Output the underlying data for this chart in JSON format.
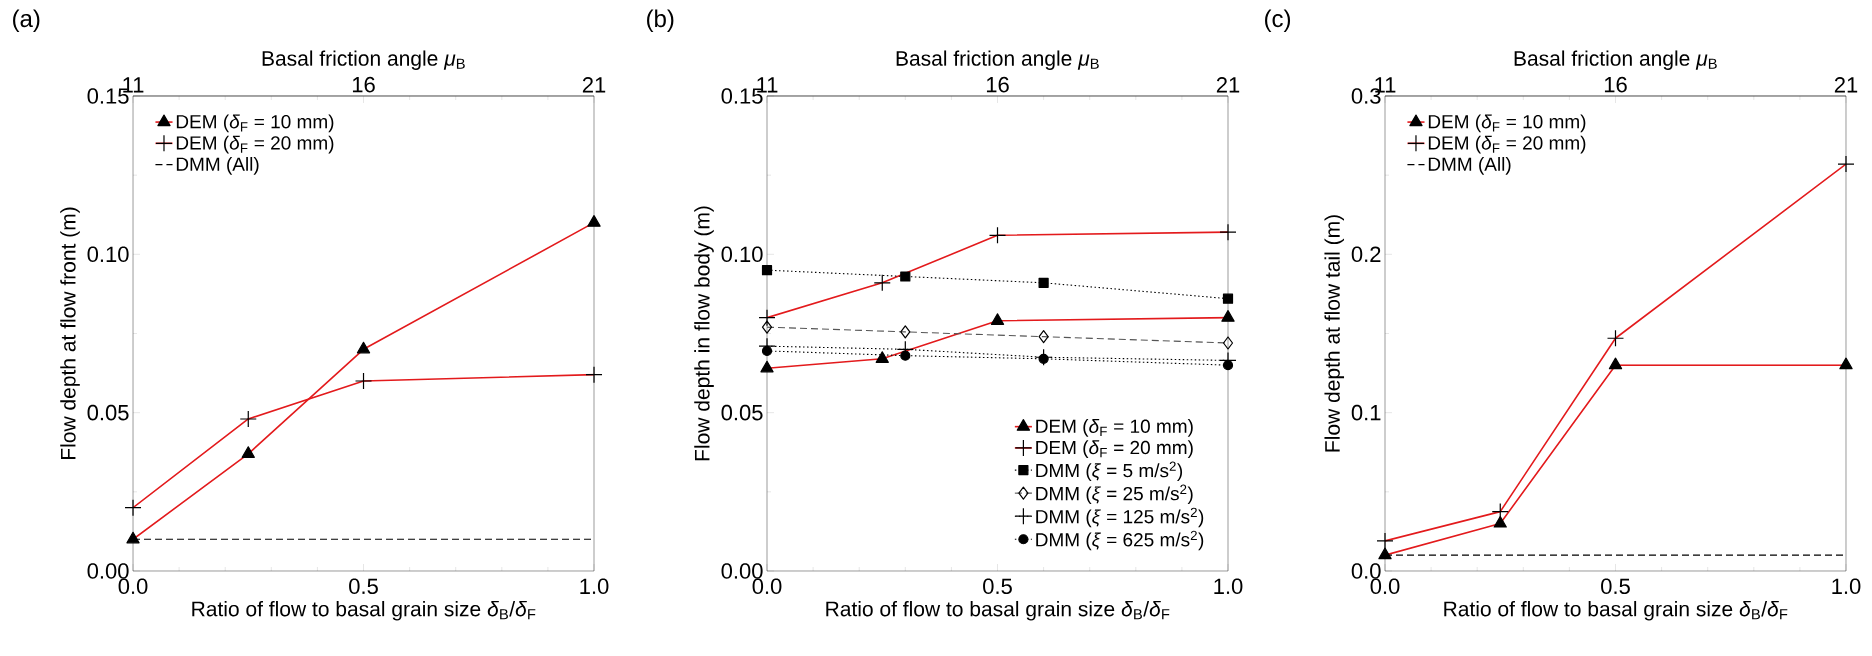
{
  "chart_data": [
    {
      "type": "line",
      "title": "(a)",
      "xlabel": "Ratio of flow to basal grain size *δ*$_{B}$/*δ*$_{F}$",
      "ylabel": "Flow depth at flow front (m)",
      "x2label": "Basal friction angle *μ*$_{B}$",
      "x": [
        0,
        0.25,
        0.5,
        1.0
      ],
      "xlim": [
        0,
        1
      ],
      "xticks": [
        {
          "value": 0,
          "label": "0.0"
        },
        {
          "value": 0.5,
          "label": "0.5"
        },
        {
          "value": 1,
          "label": "1.0"
        }
      ],
      "x2lim": [
        11,
        21
      ],
      "x2ticks": [
        11,
        16,
        21
      ],
      "ylim": [
        0,
        0.15
      ],
      "yticks": [
        {
          "value": 0,
          "label": "0.00"
        },
        {
          "value": 0.05,
          "label": "0.05"
        },
        {
          "value": 0.1,
          "label": "0.10"
        },
        {
          "value": 0.15,
          "label": "0.15"
        }
      ],
      "legend": "top left",
      "series": [
        {
          "name": "DEM (*δ*$_{F}$ = 10 mm)",
          "color": "#e31a1c",
          "values": [
            0.01,
            0.037,
            0.07,
            0.11
          ],
          "marker": "triangle",
          "line_style": "solid"
        },
        {
          "name": "DEM (*δ*$_{F}$ = 20 mm)",
          "color": "#e31a1c",
          "values": [
            0.02,
            0.048,
            0.06,
            0.062
          ],
          "marker": "cross",
          "line_style": "solid"
        },
        {
          "name": "DMM (All)",
          "color": "#000000",
          "x": [
            0,
            1
          ],
          "values": [
            0.01,
            0.01
          ],
          "line_style": "dashed"
        }
      ]
    },
    {
      "type": "line",
      "title": "(b)",
      "xlabel": "Ratio of flow to basal grain size *δ*$_{B}$/*δ*$_{F}$",
      "ylabel": "Flow depth in flow body (m)",
      "x2label": "Basal friction angle *μ*$_{B}$",
      "x": [
        0,
        0.25,
        0.5,
        1.0
      ],
      "xlim": [
        0,
        1
      ],
      "xticks": [
        {
          "value": 0,
          "label": "0.0"
        },
        {
          "value": 0.5,
          "label": "0.5"
        },
        {
          "value": 1,
          "label": "1.0"
        }
      ],
      "x2lim": [
        11,
        21
      ],
      "x2ticks": [
        11,
        16,
        21
      ],
      "ylim": [
        0,
        0.15
      ],
      "yticks": [
        {
          "value": 0,
          "label": "0.00"
        },
        {
          "value": 0.05,
          "label": "0.05"
        },
        {
          "value": 0.1,
          "label": "0.10"
        },
        {
          "value": 0.15,
          "label": "0.15"
        }
      ],
      "legend": "bottom right",
      "series": [
        {
          "name": "DEM (*δ*$_{F}$ = 10 mm)",
          "color": "#e31a1c",
          "values": [
            0.064,
            0.067,
            0.079,
            0.08
          ],
          "marker": "triangle",
          "line_style": "solid"
        },
        {
          "name": "DEM (*δ*$_{F}$ = 20 mm)",
          "color": "#e31a1c",
          "values": [
            0.08,
            0.091,
            0.106,
            0.107
          ],
          "marker": "cross",
          "line_style": "solid"
        },
        {
          "name": "DMM (*ξ* = 5 m/s$^{2}$)",
          "color": "#000000",
          "x": [
            0,
            0.3,
            0.6,
            1.0
          ],
          "values": [
            0.095,
            0.093,
            0.091,
            0.086
          ],
          "marker": "square",
          "line_style": "dotted"
        },
        {
          "name": "DMM (*ξ* = 25 m/s$^{2}$)",
          "color": "#555555",
          "x": [
            0,
            0.3,
            0.6,
            1.0
          ],
          "values": [
            0.077,
            0.0755,
            0.074,
            0.072
          ],
          "marker": "diamond",
          "line_style": "dashed"
        },
        {
          "name": "DMM (*ξ* = 125 m/s$^{2}$)",
          "color": "#000000",
          "x": [
            0,
            0.3,
            0.6,
            1.0
          ],
          "values": [
            0.071,
            0.07,
            0.0675,
            0.0665
          ],
          "marker": "cross",
          "line_style": "dotted"
        },
        {
          "name": "DMM (*ξ* = 625 m/s$^{2}$)",
          "color": "#000000",
          "x": [
            0,
            0.3,
            0.6,
            1.0
          ],
          "values": [
            0.0695,
            0.068,
            0.067,
            0.065
          ],
          "marker": "circle",
          "line_style": "dotted"
        }
      ]
    },
    {
      "type": "line",
      "title": "(c)",
      "xlabel": "Ratio of flow to basal grain size *δ*$_{B}$/*δ*$_{F}$",
      "ylabel": "Flow depth at flow tail (m)",
      "x2label": "Basal friction angle *μ*$_{B}$",
      "x": [
        0,
        0.25,
        0.5,
        1.0
      ],
      "xlim": [
        0,
        1
      ],
      "xticks": [
        {
          "value": 0,
          "label": "0.0"
        },
        {
          "value": 0.5,
          "label": "0.5"
        },
        {
          "value": 1,
          "label": "1.0"
        }
      ],
      "x2lim": [
        11,
        21
      ],
      "x2ticks": [
        11,
        16,
        21
      ],
      "ylim": [
        0,
        0.3
      ],
      "yticks": [
        {
          "value": 0,
          "label": "0.0"
        },
        {
          "value": 0.1,
          "label": "0.1"
        },
        {
          "value": 0.2,
          "label": "0.2"
        },
        {
          "value": 0.3,
          "label": "0.3"
        }
      ],
      "legend": "top left",
      "series": [
        {
          "name": "DEM (*δ*$_{F}$ = 10 mm)",
          "color": "#e31a1c",
          "values": [
            0.01,
            0.03,
            0.13,
            0.13
          ],
          "marker": "triangle",
          "line_style": "solid"
        },
        {
          "name": "DEM (*δ*$_{F}$ = 20 mm)",
          "color": "#e31a1c",
          "values": [
            0.019,
            0.0375,
            0.147,
            0.257
          ],
          "marker": "cross",
          "line_style": "solid"
        },
        {
          "name": "DMM (All)",
          "color": "#000000",
          "x": [
            0,
            1
          ],
          "values": [
            0.01,
            0.01
          ],
          "line_style": "dashed"
        }
      ]
    }
  ]
}
